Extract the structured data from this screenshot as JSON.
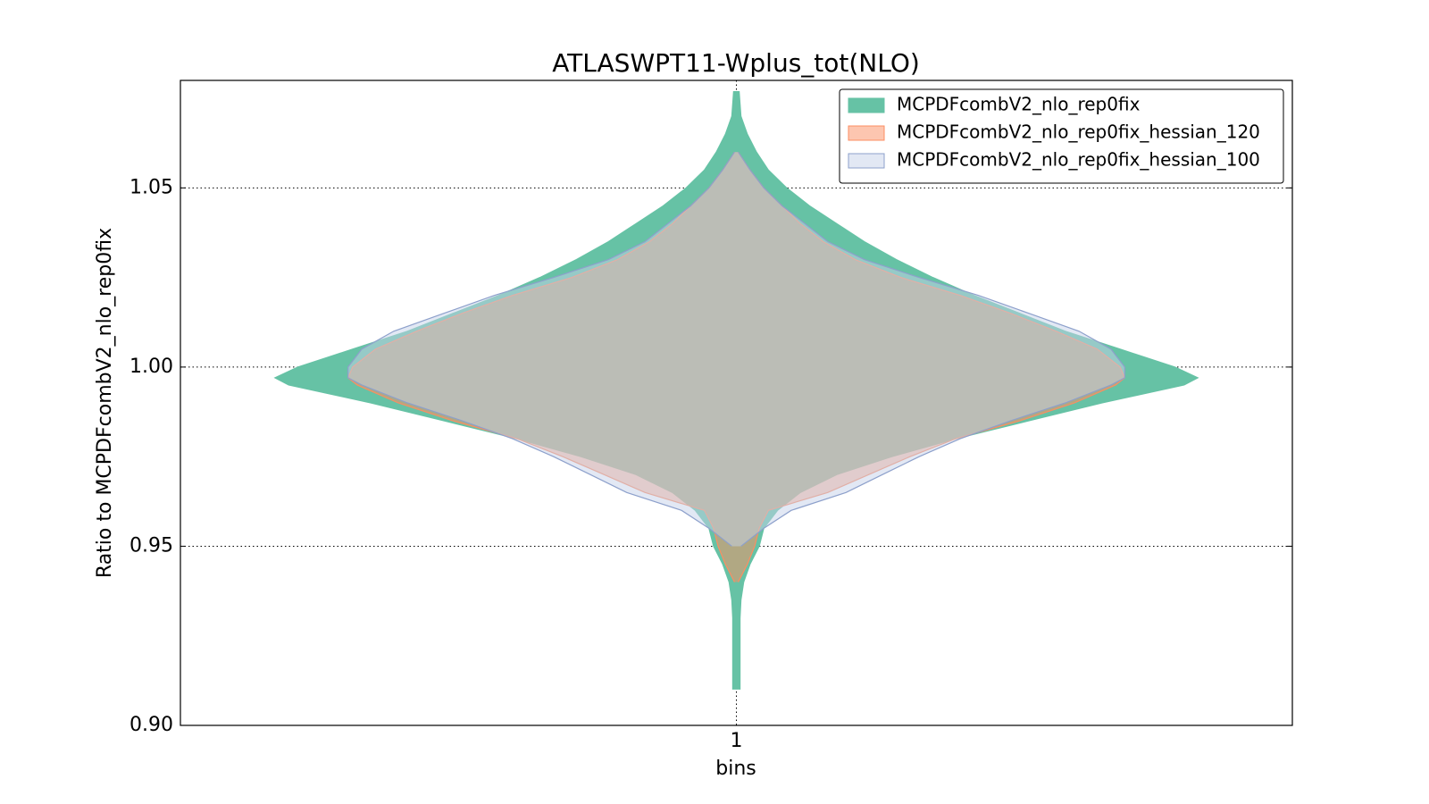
{
  "chart_data": {
    "type": "violin",
    "title": "ATLASWPT11-Wplus_tot(NLO)",
    "x_label": "bins",
    "y_label": "Ratio to MCPDFcombV2_nlo_rep0fix",
    "categories": [
      "1"
    ],
    "y": [
      1.077,
      1.07,
      1.065,
      1.06,
      1.055,
      1.05,
      1.045,
      1.04,
      1.035,
      1.03,
      1.025,
      1.02,
      1.015,
      1.01,
      1.005,
      1.0,
      0.997,
      0.995,
      0.99,
      0.985,
      0.98,
      0.975,
      0.97,
      0.965,
      0.96,
      0.955,
      0.95,
      0.945,
      0.94,
      0.935,
      0.93,
      0.92,
      0.91
    ],
    "series": [
      {
        "name": "MCPDFcombV2_nlo_rep0fix",
        "color": "#66c2a5",
        "edge": "#66c2a5",
        "values": [
          3,
          5,
          12,
          22,
          35,
          55,
          80,
          110,
          140,
          175,
          215,
          260,
          310,
          360,
          420,
          480,
          505,
          490,
          400,
          320,
          240,
          170,
          110,
          70,
          45,
          30,
          25,
          15,
          8,
          5,
          4,
          4,
          4
        ]
      },
      {
        "name": "MCPDFcombV2_nlo_rep0fix_hessian_120",
        "color": "#fc8d62",
        "edge": "#fc8d62",
        "values": [
          null,
          null,
          null,
          2,
          15,
          30,
          50,
          70,
          95,
          130,
          180,
          245,
          300,
          350,
          395,
          420,
          425,
          415,
          370,
          310,
          240,
          190,
          145,
          100,
          35,
          25,
          20,
          12,
          2,
          null,
          null,
          null,
          null
        ]
      },
      {
        "name": "MCPDFcombV2_nlo_rep0fix_hessian_100",
        "color": "#c6d2ea",
        "edge": "#8da0cb",
        "values": [
          null,
          null,
          null,
          2,
          15,
          30,
          50,
          75,
          100,
          140,
          200,
          265,
          320,
          375,
          410,
          425,
          425,
          410,
          360,
          300,
          245,
          200,
          160,
          120,
          60,
          30,
          5,
          null,
          null,
          null,
          null,
          null,
          null
        ]
      }
    ],
    "ylim": [
      0.9,
      1.08
    ],
    "yticks": [
      {
        "value": 0.9,
        "label": "0.90"
      },
      0.95,
      {
        "value": 1.0,
        "label": "1.00"
      },
      1.05
    ],
    "grid": true,
    "legend": "upper right"
  }
}
